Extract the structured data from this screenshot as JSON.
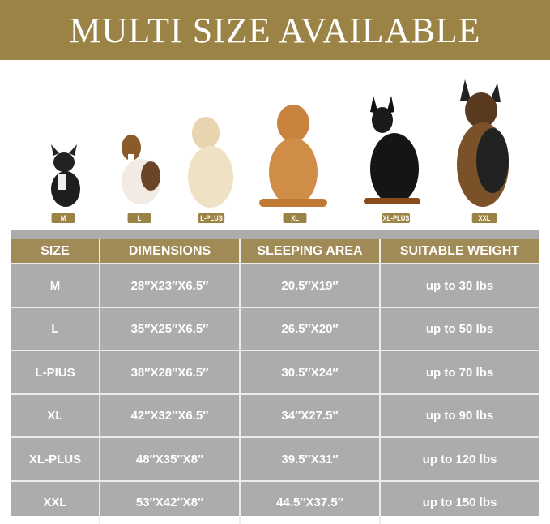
{
  "banner": {
    "title": "MULTI SIZE AVAILABLE"
  },
  "colors": {
    "accent": "#9b8346",
    "table_bg": "#acacac",
    "header_bg": "#a08a56"
  },
  "dogs": [
    {
      "label": "M",
      "breed_icon": "french-bulldog"
    },
    {
      "label": "L",
      "breed_icon": "beagle"
    },
    {
      "label": "L-PLUS",
      "breed_icon": "labrador"
    },
    {
      "label": "XL",
      "breed_icon": "golden-retriever"
    },
    {
      "label": "XL-PLUS",
      "breed_icon": "doberman"
    },
    {
      "label": "XXL",
      "breed_icon": "german-shepherd"
    }
  ],
  "table": {
    "headers": [
      "SIZE",
      "DIMENSIONS",
      "SLEEPING AREA",
      "SUITABLE WEIGHT"
    ],
    "rows": [
      [
        "M",
        "28″X23″X6.5″",
        "20.5″X19″",
        "up to 30 lbs"
      ],
      [
        "L",
        "35″X25″X6.5″",
        "26.5″X20″",
        "up to 50 lbs"
      ],
      [
        "L-PIUS",
        "38″X28″X6.5″",
        "30.5″X24″",
        "up to 70 lbs"
      ],
      [
        "XL",
        "42″X32″X6.5″",
        "34″X27.5″",
        "up to 90 lbs"
      ],
      [
        "XL-PLUS",
        "48″X35″X8″",
        "39.5″X31″",
        "up to 120 lbs"
      ],
      [
        "XXL",
        "53″X42″X8″",
        "44.5″X37.5″",
        "up to 150 lbs"
      ]
    ]
  }
}
